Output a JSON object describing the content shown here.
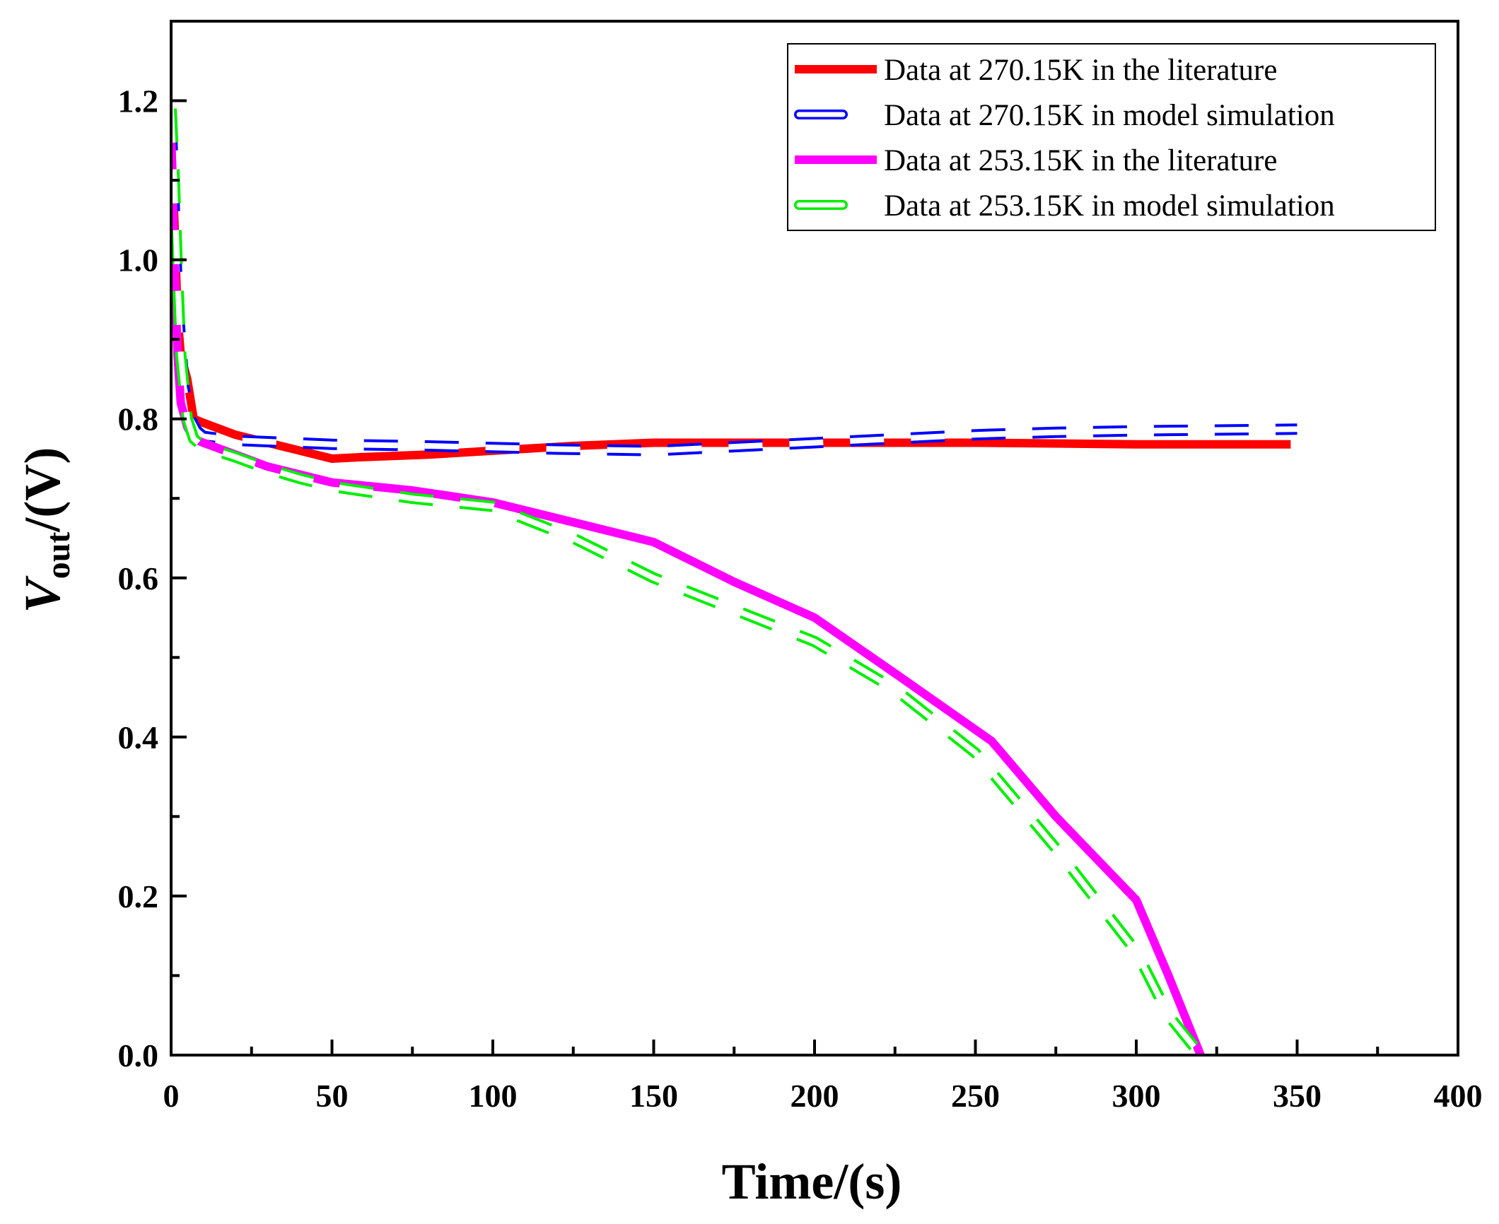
{
  "chart_data": {
    "type": "line",
    "title": "",
    "xlabel": "Time/(s)",
    "ylabel": {
      "base": "V",
      "sub": "out",
      "suffix": "/(V)"
    },
    "xlim": [
      0,
      400
    ],
    "ylim": [
      0,
      1.3
    ],
    "xticks": [
      0,
      50,
      100,
      150,
      200,
      250,
      300,
      350,
      400
    ],
    "yticks": [
      0.0,
      0.2,
      0.4,
      0.6,
      0.8,
      1.0,
      1.2
    ],
    "xtick_labels": [
      "0",
      "50",
      "100",
      "150",
      "200",
      "250",
      "300",
      "350",
      "400"
    ],
    "ytick_labels": [
      "0.0",
      "0.2",
      "0.4",
      "0.6",
      "0.8",
      "1.0",
      "1.2"
    ],
    "grid": false,
    "legend_position": "top-right",
    "series": [
      {
        "name": "Data at 270.15K in the literature",
        "color": "#ff0000",
        "style": "solid",
        "x": [
          0,
          1,
          2,
          3,
          5,
          7,
          10,
          20,
          30,
          40,
          50,
          60,
          80,
          100,
          125,
          150,
          175,
          200,
          250,
          300,
          348
        ],
        "y": [
          1.15,
          1.05,
          0.93,
          0.88,
          0.85,
          0.8,
          0.795,
          0.78,
          0.77,
          0.76,
          0.75,
          0.752,
          0.755,
          0.76,
          0.766,
          0.77,
          0.77,
          0.77,
          0.77,
          0.768,
          0.768
        ]
      },
      {
        "name": "Data at 270.15K in model simulation",
        "color": "#0000ff",
        "style": "dashed",
        "x": [
          0,
          2,
          4,
          6,
          8,
          10,
          20,
          50,
          80,
          100,
          120,
          150,
          175,
          200,
          225,
          250,
          275,
          300,
          350
        ],
        "y": [
          1.18,
          0.95,
          0.84,
          0.8,
          0.785,
          0.778,
          0.773,
          0.768,
          0.766,
          0.764,
          0.762,
          0.76,
          0.765,
          0.77,
          0.775,
          0.78,
          0.783,
          0.785,
          0.787
        ]
      },
      {
        "name": "Data at 253.15K in the literature",
        "color": "#ff00ff",
        "style": "solid",
        "x": [
          0,
          1,
          2,
          3,
          5,
          7,
          10,
          20,
          30,
          40,
          50,
          75,
          100,
          125,
          150,
          175,
          200,
          225,
          255,
          275,
          300,
          310,
          320
        ],
        "y": [
          1.16,
          1.0,
          0.88,
          0.82,
          0.79,
          0.775,
          0.77,
          0.755,
          0.74,
          0.73,
          0.72,
          0.71,
          0.695,
          0.67,
          0.645,
          0.595,
          0.55,
          0.48,
          0.395,
          0.3,
          0.195,
          0.1,
          0.0
        ]
      },
      {
        "name": "Data at 253.15K in model simulation",
        "color": "#00ee00",
        "style": "dashed",
        "x": [
          0,
          1,
          2,
          3,
          5,
          7,
          10,
          20,
          30,
          40,
          50,
          75,
          100,
          125,
          150,
          175,
          200,
          225,
          250,
          275,
          300,
          310,
          320
        ],
        "y": [
          1.19,
          1.1,
          0.98,
          0.88,
          0.8,
          0.775,
          0.765,
          0.752,
          0.737,
          0.725,
          0.715,
          0.7,
          0.69,
          0.65,
          0.6,
          0.56,
          0.52,
          0.46,
          0.38,
          0.26,
          0.13,
          0.05,
          0.0
        ]
      }
    ]
  }
}
